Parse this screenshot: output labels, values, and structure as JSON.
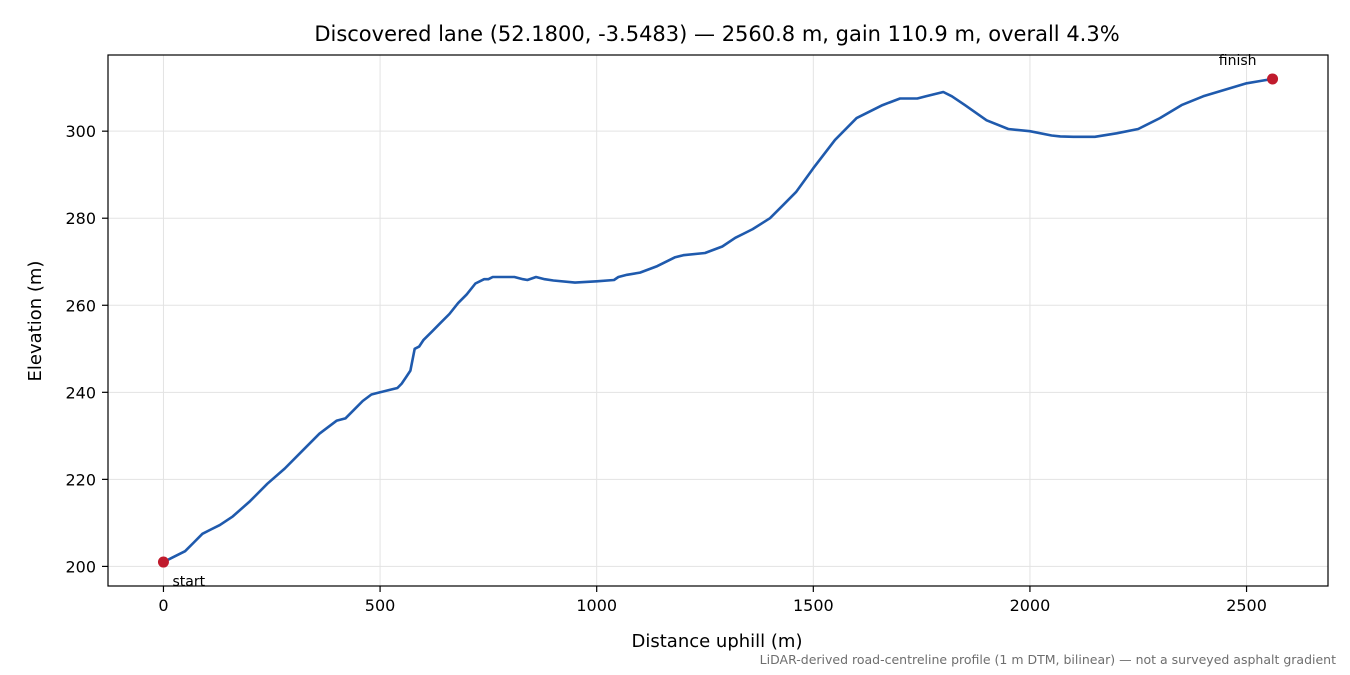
{
  "chart_data": {
    "type": "line",
    "title": "Discovered lane (52.1800, -3.5483) — 2560.8 m, gain 110.9 m, overall 4.3%",
    "xlabel": "Distance uphill (m)",
    "ylabel": "Elevation (m)",
    "xlim": [
      -128,
      2688
    ],
    "ylim": [
      195.5,
      317.5
    ],
    "xticks": [
      0,
      500,
      1000,
      1500,
      2000,
      2500
    ],
    "yticks": [
      200,
      220,
      240,
      260,
      280,
      300
    ],
    "grid": true,
    "footnote": "LiDAR-derived road-centreline profile (1 m DTM, bilinear) — not a surveyed asphalt gradient",
    "line_color": "#1f5aad",
    "marker_color": "#c01b2d",
    "series": [
      {
        "x": [
          0,
          20,
          50,
          70,
          90,
          110,
          130,
          160,
          200,
          240,
          280,
          320,
          360,
          400,
          420,
          440,
          460,
          480,
          500,
          520,
          540,
          550,
          560,
          570,
          580,
          590,
          600,
          620,
          640,
          660,
          680,
          700,
          720,
          740,
          750,
          760,
          770,
          790,
          810,
          830,
          840,
          860,
          880,
          900,
          950,
          1000,
          1040,
          1050,
          1070,
          1100,
          1140,
          1180,
          1200,
          1250,
          1290,
          1320,
          1340,
          1360,
          1400,
          1430,
          1460,
          1500,
          1550,
          1600,
          1630,
          1660,
          1700,
          1720,
          1740,
          1760,
          1800,
          1820,
          1850,
          1900,
          1950,
          2000,
          2050,
          2070,
          2100,
          2150,
          2200,
          2250,
          2300,
          2350,
          2400,
          2450,
          2500,
          2530,
          2560
        ],
        "y": [
          201,
          202,
          203.5,
          205.5,
          207.5,
          208.5,
          209.5,
          211.5,
          215,
          219,
          222.5,
          226.5,
          230.5,
          233.5,
          234,
          236,
          238,
          239.5,
          240,
          240.5,
          241,
          242,
          243.5,
          245,
          250,
          250.5,
          252,
          254,
          256,
          258,
          260.5,
          262.5,
          265,
          266,
          266,
          266.5,
          266.5,
          266.5,
          266.5,
          266,
          265.8,
          266.5,
          266,
          265.7,
          265.2,
          265.5,
          265.8,
          266.5,
          267,
          267.5,
          269,
          271,
          271.5,
          272,
          273.5,
          275.5,
          276.5,
          277.5,
          280,
          283,
          286,
          291.5,
          298,
          303,
          304.5,
          306,
          307.5,
          307.5,
          307.5,
          308,
          309,
          308,
          306,
          302.5,
          300.5,
          300,
          299,
          298.8,
          298.7,
          298.7,
          299.5,
          300.5,
          303,
          306,
          308,
          309.5,
          311,
          311.5,
          312
        ]
      }
    ],
    "annotations": [
      {
        "text": "start",
        "x": 0,
        "y": 201,
        "anchor": "below-right"
      },
      {
        "text": "finish",
        "x": 2560,
        "y": 312,
        "anchor": "above-left"
      }
    ]
  }
}
